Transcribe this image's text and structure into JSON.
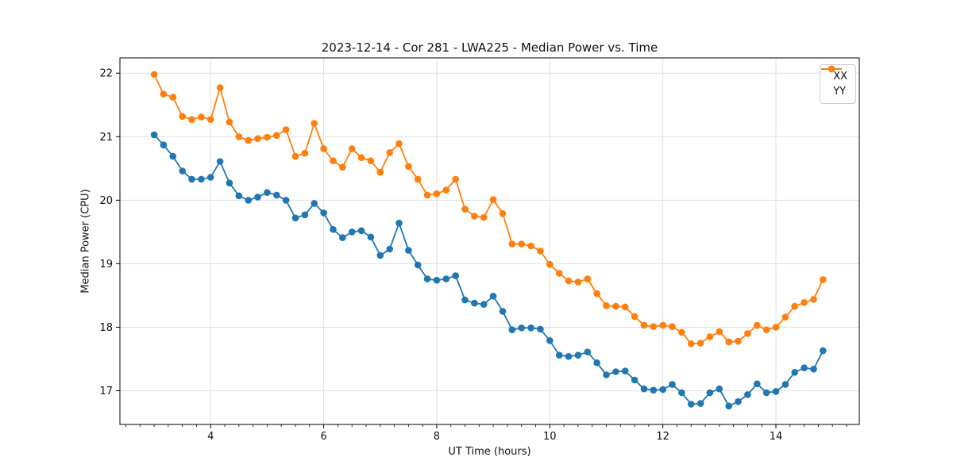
{
  "title": "2023-12-14 - Cor 281 - LWA225 - Median Power vs. Time",
  "xlabel": "UT Time (hours)",
  "ylabel": "Median Power (CPU)",
  "legend": {
    "position": "upper-right",
    "entries": [
      "XX",
      "YY"
    ]
  },
  "colors": {
    "xx": "#1f77b4",
    "yy": "#ff7f0e",
    "grid": "#e0e0e0",
    "spine": "#000000",
    "text": "#111111",
    "background": "#ffffff"
  },
  "chart_data": {
    "type": "line",
    "title": "2023-12-14 - Cor 281 - LWA225 - Median Power vs. Time",
    "xlabel": "UT Time (hours)",
    "ylabel": "Median Power (CPU)",
    "grid": true,
    "marker": "circle",
    "legend_position": "upper right",
    "xlim": [
      2.395,
      15.475
    ],
    "ylim": [
      16.47,
      22.24
    ],
    "xticks": [
      4,
      6,
      8,
      10,
      12,
      14
    ],
    "yticks": [
      17,
      18,
      19,
      20,
      21,
      22
    ],
    "minor_xtick_step": 0.25,
    "x": [
      3.0,
      3.167,
      3.333,
      3.5,
      3.667,
      3.833,
      4.0,
      4.167,
      4.333,
      4.5,
      4.667,
      4.833,
      5.0,
      5.167,
      5.333,
      5.5,
      5.667,
      5.833,
      6.0,
      6.167,
      6.333,
      6.5,
      6.667,
      6.833,
      7.0,
      7.167,
      7.333,
      7.5,
      7.667,
      7.833,
      8.0,
      8.167,
      8.333,
      8.5,
      8.667,
      8.833,
      9.0,
      9.167,
      9.333,
      9.5,
      9.667,
      9.833,
      10.0,
      10.167,
      10.333,
      10.5,
      10.667,
      10.833,
      11.0,
      11.167,
      11.333,
      11.5,
      11.667,
      11.833,
      12.0,
      12.167,
      12.333,
      12.5,
      12.667,
      12.833,
      13.0,
      13.167,
      13.333,
      13.5,
      13.667,
      13.833,
      14.0,
      14.167,
      14.333,
      14.5,
      14.667,
      14.833
    ],
    "series": [
      {
        "name": "XX",
        "color": "#1f77b4",
        "values": [
          21.03,
          20.87,
          20.69,
          20.46,
          20.33,
          20.33,
          20.36,
          20.61,
          20.27,
          20.07,
          20.0,
          20.05,
          20.12,
          20.08,
          20.0,
          19.72,
          19.77,
          19.95,
          19.8,
          19.54,
          19.41,
          19.5,
          19.52,
          19.42,
          19.13,
          19.23,
          19.64,
          19.21,
          18.98,
          18.76,
          18.74,
          18.76,
          18.81,
          18.43,
          18.38,
          18.36,
          18.49,
          18.25,
          17.96,
          17.99,
          17.99,
          17.97,
          17.79,
          17.56,
          17.54,
          17.56,
          17.61,
          17.44,
          17.25,
          17.3,
          17.31,
          17.17,
          17.03,
          17.01,
          17.02,
          17.1,
          16.97,
          16.79,
          16.8,
          16.97,
          17.03,
          16.76,
          16.83,
          16.94,
          17.11,
          16.97,
          16.99,
          17.1,
          17.29,
          17.36,
          17.34,
          17.63
        ]
      },
      {
        "name": "YY",
        "color": "#ff7f0e",
        "values": [
          21.98,
          21.67,
          21.62,
          21.32,
          21.27,
          21.31,
          21.27,
          21.77,
          21.23,
          21.0,
          20.94,
          20.97,
          20.99,
          21.02,
          21.11,
          20.69,
          20.74,
          21.21,
          20.81,
          20.62,
          20.52,
          20.81,
          20.67,
          20.62,
          20.44,
          20.75,
          20.89,
          20.53,
          20.33,
          20.08,
          20.1,
          20.16,
          20.33,
          19.86,
          19.75,
          19.73,
          20.01,
          19.79,
          19.31,
          19.31,
          19.28,
          19.2,
          18.99,
          18.85,
          18.73,
          18.71,
          18.76,
          18.53,
          18.34,
          18.33,
          18.32,
          18.17,
          18.03,
          18.01,
          18.03,
          18.01,
          17.92,
          17.74,
          17.75,
          17.85,
          17.93,
          17.77,
          17.78,
          17.9,
          18.03,
          17.96,
          18.0,
          18.16,
          18.33,
          18.39,
          18.44,
          18.75
        ]
      }
    ]
  }
}
